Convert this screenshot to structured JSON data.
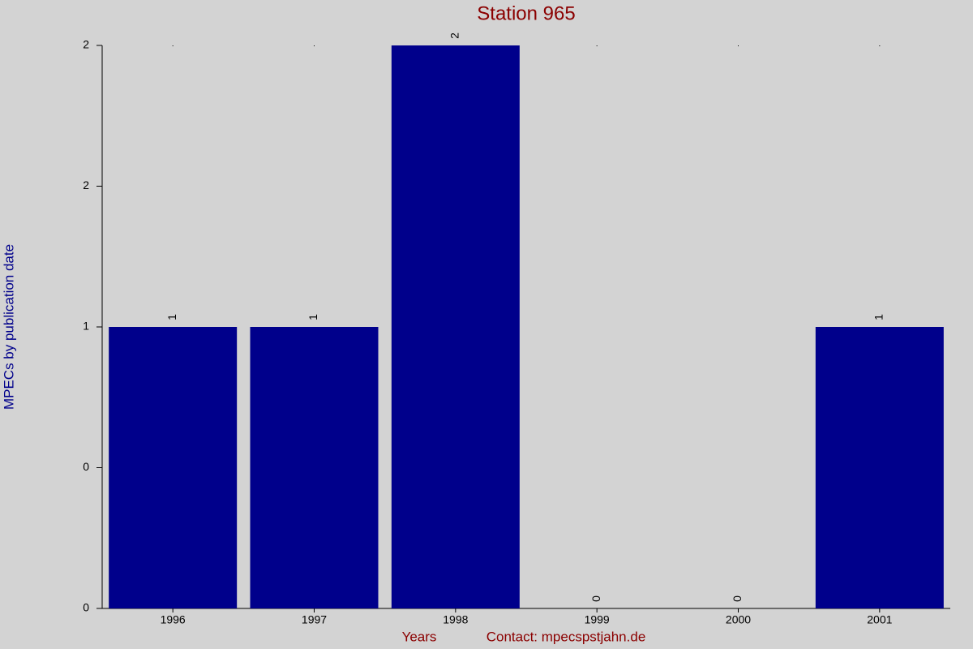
{
  "chart_data": {
    "type": "bar",
    "title": "Station 965",
    "x_label": "Years",
    "y_label": "MPECs by publication date",
    "note": "Contact: mpecspstjahn.de",
    "categories": [
      "1996",
      "1997",
      "1998",
      "1999",
      "2000",
      "2001"
    ],
    "values": [
      1,
      1,
      2,
      0,
      0,
      1
    ],
    "color": "#00008b",
    "ylim": [
      0,
      2
    ],
    "yticks": [
      0,
      {
        "value": 0.5,
        "label": "0"
      },
      1,
      {
        "value": 1.5,
        "label": "2"
      },
      2
    ],
    "grid": false
  }
}
